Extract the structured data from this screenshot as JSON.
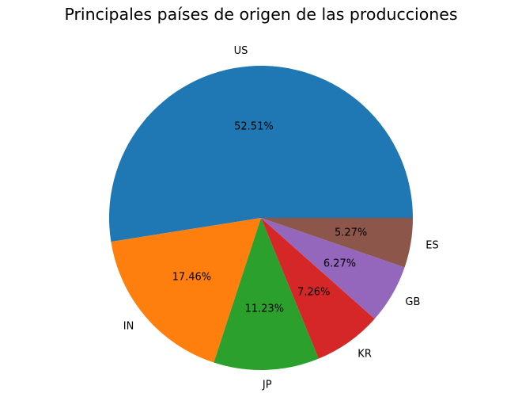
{
  "chart_data": {
    "type": "pie",
    "title": "Principales países de origen de las producciones",
    "categories": [
      "US",
      "IN",
      "JP",
      "KR",
      "GB",
      "ES"
    ],
    "values": [
      52.51,
      17.46,
      11.23,
      7.26,
      6.27,
      5.27
    ],
    "value_labels": [
      "52.51%",
      "17.46%",
      "11.23%",
      "7.26%",
      "6.27%",
      "5.27%"
    ],
    "colors": [
      "#1f77b4",
      "#ff7f0e",
      "#2ca02c",
      "#d62728",
      "#9467bd",
      "#8c564b"
    ],
    "start_angle": 0,
    "direction": "counterclockwise",
    "legend": "none"
  }
}
